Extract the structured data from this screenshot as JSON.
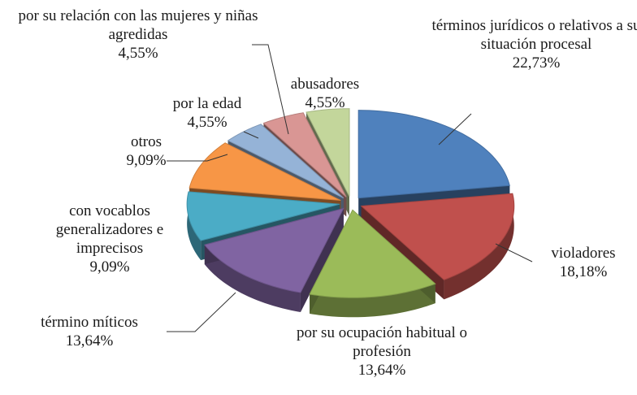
{
  "chart_data": {
    "type": "pie3d",
    "categories": [
      "términos jurídicos o relativos a su situación procesal",
      "violadores",
      "por su ocupación habitual o profesión",
      "término míticos",
      "con vocablos generalizadores e imprecisos",
      "otros",
      "por la edad",
      "por su relación con las mujeres y niñas agredidas",
      "abusadores"
    ],
    "values": [
      22.73,
      18.18,
      13.64,
      13.64,
      9.09,
      9.09,
      4.55,
      4.55,
      4.55
    ],
    "value_labels": [
      "22,73%",
      "18,18%",
      "13,64%",
      "13,64%",
      "9,09%",
      "9,09%",
      "4,55%",
      "4,55%",
      "4,55%"
    ],
    "colors": [
      "#4f81bd",
      "#c0504d",
      "#9bbb59",
      "#8064a2",
      "#4bacc6",
      "#f79646",
      "#95b3d7",
      "#d99694",
      "#c3d69b"
    ]
  }
}
